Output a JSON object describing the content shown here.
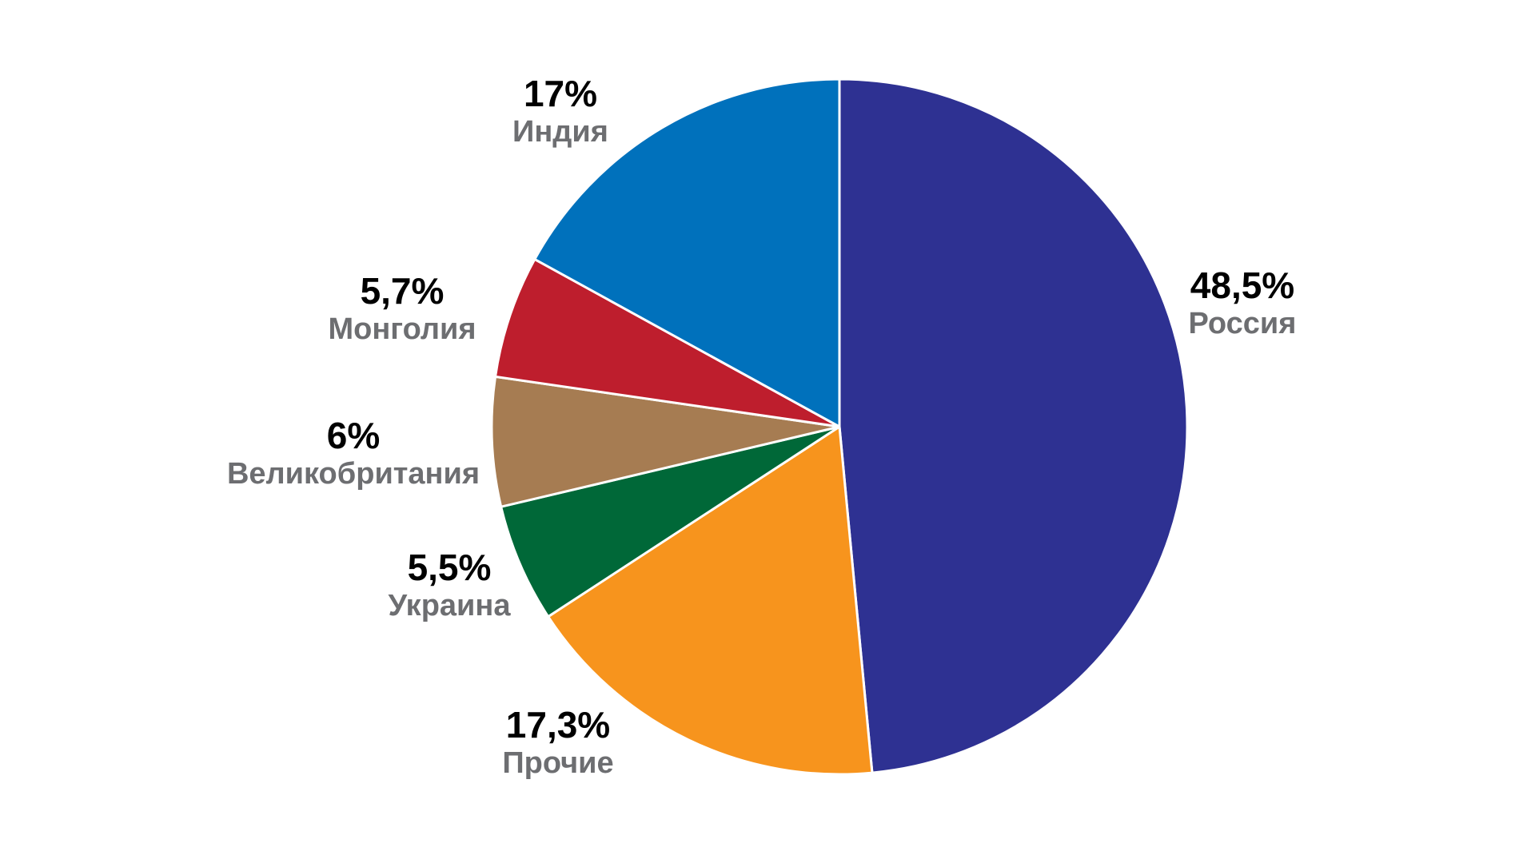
{
  "chart_data": {
    "type": "pie",
    "categories": [
      "Россия",
      "Прочие",
      "Украина",
      "Великобритания",
      "Монголия",
      "Индия"
    ],
    "values": [
      48.5,
      17.3,
      5.5,
      6,
      5.7,
      17
    ],
    "value_labels": [
      "48,5%",
      "17,3%",
      "5,5%",
      "6%",
      "5,7%",
      "17%"
    ],
    "colors": [
      "#2e3192",
      "#f7941d",
      "#006838",
      "#a67c52",
      "#be1e2d",
      "#0071bc"
    ]
  }
}
